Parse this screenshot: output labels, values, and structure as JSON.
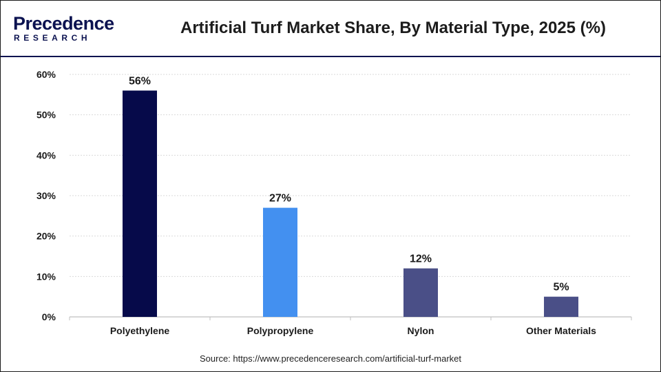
{
  "brand": {
    "name": "Precedence",
    "sub": "RESEARCH"
  },
  "chart_data": {
    "type": "bar",
    "title": "Artificial Turf Market Share, By Material Type, 2025 (%)",
    "categories": [
      "Polyethylene",
      "Polypropylene",
      "Nylon",
      "Other Materials"
    ],
    "values": [
      56,
      27,
      12,
      5
    ],
    "data_labels": [
      "56%",
      "27%",
      "12%",
      "5%"
    ],
    "bar_colors": [
      "#060A4A",
      "#4390F0",
      "#4A4F87",
      "#4A4F87"
    ],
    "ylim": [
      0,
      60
    ],
    "yticks": [
      0,
      10,
      20,
      30,
      40,
      50,
      60
    ],
    "ytick_labels": [
      "0%",
      "10%",
      "20%",
      "30%",
      "40%",
      "50%",
      "60%"
    ],
    "xlabel": "",
    "ylabel": "",
    "grid": true,
    "legend": "none"
  },
  "source": "Source: https://www.precedenceresearch.com/artificial-turf-market"
}
